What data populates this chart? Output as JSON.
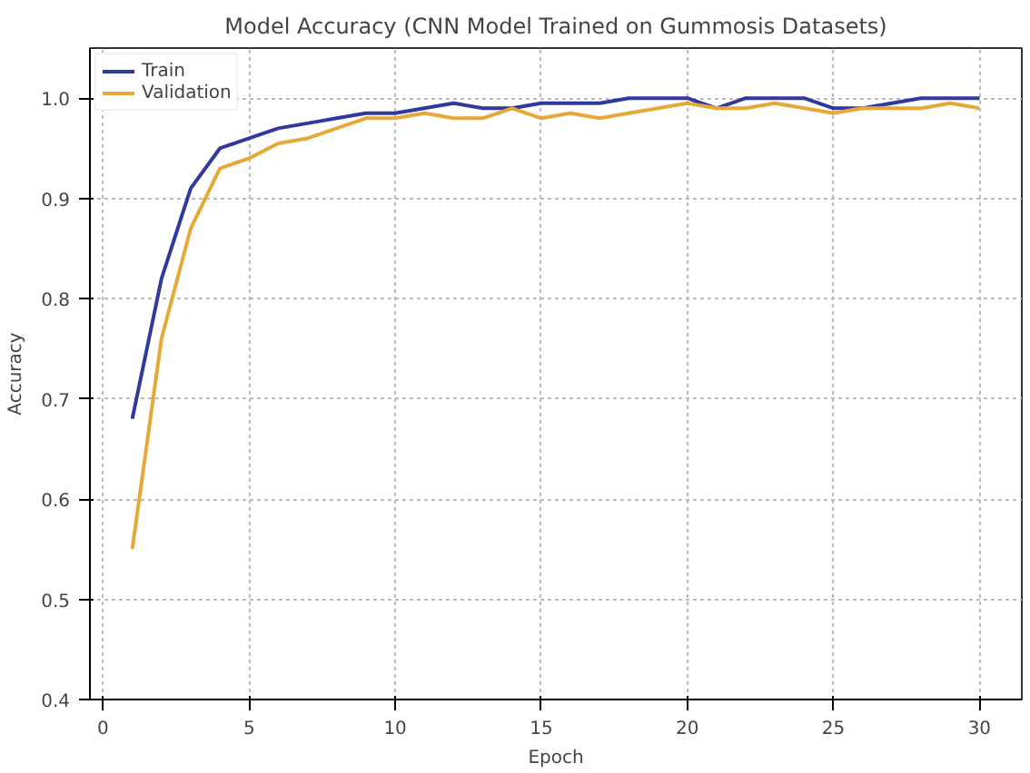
{
  "chart_data": {
    "type": "line",
    "title": "Model Accuracy (CNN Model Trained on Gummosis Datasets)",
    "xlabel": "Epoch",
    "ylabel": "Accuracy",
    "x": [
      1,
      2,
      3,
      4,
      5,
      6,
      7,
      8,
      9,
      10,
      11,
      12,
      13,
      14,
      15,
      16,
      17,
      18,
      19,
      20,
      21,
      22,
      23,
      24,
      25,
      26,
      27,
      28,
      29,
      30
    ],
    "series": [
      {
        "name": "Train",
        "color": "#2e3a9e",
        "values": [
          0.68,
          0.82,
          0.91,
          0.95,
          0.96,
          0.97,
          0.975,
          0.98,
          0.985,
          0.985,
          0.99,
          0.995,
          0.99,
          0.99,
          0.995,
          0.995,
          0.995,
          1.0,
          1.0,
          1.0,
          0.99,
          1.0,
          1.0,
          1.0,
          0.99,
          0.99,
          0.995,
          1.0,
          1.0,
          1.0
        ]
      },
      {
        "name": "Validation",
        "color": "#e8a838",
        "values": [
          0.55,
          0.76,
          0.87,
          0.93,
          0.94,
          0.955,
          0.96,
          0.97,
          0.98,
          0.98,
          0.985,
          0.98,
          0.98,
          0.99,
          0.98,
          0.985,
          0.98,
          0.985,
          0.99,
          0.995,
          0.99,
          0.99,
          0.995,
          0.99,
          0.985,
          0.99,
          0.99,
          0.99,
          0.995,
          0.99
        ]
      }
    ],
    "xlim": [
      -0.45,
      31.45
    ],
    "ylim": [
      0.4,
      1.05
    ],
    "xticks": [
      0,
      5,
      10,
      15,
      20,
      25,
      30
    ],
    "yticks": [
      {
        "value": 0.4,
        "label": "0.4"
      },
      {
        "value": 0.5,
        "label": "0.5"
      },
      {
        "value": 0.6,
        "label": "0.6"
      },
      {
        "value": 0.7,
        "label": "0.7"
      },
      {
        "value": 0.8,
        "label": "0.8"
      },
      {
        "value": 0.9,
        "label": "0.9"
      },
      {
        "value": 1.0,
        "label": "1.0"
      }
    ],
    "grid": true,
    "legend": "top left",
    "line_style": "solid"
  }
}
